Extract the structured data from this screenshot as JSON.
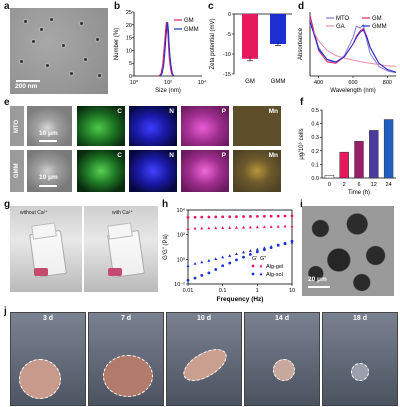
{
  "panel_letters": [
    "a",
    "b",
    "c",
    "d",
    "e",
    "f",
    "g",
    "h",
    "i",
    "j"
  ],
  "a": {
    "scalebar": "200 nm"
  },
  "e": {
    "rows": [
      "MTO",
      "GMM"
    ],
    "scalebars": [
      "10 μm",
      "10 μm"
    ],
    "channels": [
      "C",
      "N",
      "P",
      "Mn"
    ]
  },
  "g": {
    "labels": [
      "without Ca²⁺",
      "with Ca²⁺"
    ]
  },
  "i": {
    "scalebar": "20 μm"
  },
  "j": {
    "days": [
      "3 d",
      "7 d",
      "10 d",
      "14 d",
      "18 d"
    ]
  },
  "colors": {
    "gm": "#e6195c",
    "gmm": "#1c2fd1",
    "mto": "#7b7bd6",
    "ga": "#e68fb5",
    "bars": [
      "#e6195c",
      "#9b1d6a",
      "#4a3b9c",
      "#1e5fc4"
    ]
  },
  "chart_data": [
    {
      "id": "b",
      "type": "line",
      "xlabel": "Size (nm)",
      "ylabel": "Number (%)",
      "xscale": "log",
      "xlim": [
        1,
        10000
      ],
      "ylim": [
        0,
        25
      ],
      "xticks": [
        "10⁰",
        "10²",
        "10⁴"
      ],
      "yticks": [
        "0",
        "5",
        "10",
        "15",
        "20",
        "25"
      ],
      "legend_position": "top-right",
      "series": [
        {
          "name": "GM",
          "x": [
            30,
            40,
            50,
            60,
            70,
            80,
            90,
            100,
            110,
            120,
            140,
            160,
            200
          ],
          "y": [
            0,
            1,
            5,
            11,
            17,
            21,
            20,
            16,
            11,
            7,
            3,
            1,
            0
          ]
        },
        {
          "name": "GMM",
          "x": [
            35,
            45,
            55,
            65,
            75,
            85,
            95,
            105,
            115,
            130,
            150,
            180,
            220
          ],
          "y": [
            0,
            1,
            4,
            9,
            15,
            19,
            21,
            18,
            13,
            8,
            4,
            1,
            0
          ]
        }
      ]
    },
    {
      "id": "c",
      "type": "bar",
      "ylabel": "Zeta potential (mV)",
      "categories": [
        "GM",
        "GMM"
      ],
      "values": [
        -11.2,
        -7.5
      ],
      "errors": [
        0.5,
        0.4
      ],
      "ylim": [
        -15,
        0
      ],
      "yticks": [
        "0",
        "-5",
        "-10",
        "-15"
      ]
    },
    {
      "id": "d",
      "type": "line",
      "xlabel": "Wavelength (nm)",
      "ylabel": "Absorbance",
      "xlim": [
        350,
        850
      ],
      "xticks": [
        "400",
        "600",
        "800"
      ],
      "legend_position": "top",
      "series": [
        {
          "name": "MTO",
          "x": [
            350,
            400,
            450,
            500,
            550,
            600,
            620,
            640,
            660,
            680,
            700,
            750,
            800,
            850
          ],
          "y": [
            0.9,
            0.45,
            0.25,
            0.2,
            0.32,
            0.6,
            0.78,
            0.75,
            0.8,
            0.55,
            0.35,
            0.15,
            0.08,
            0.05
          ]
        },
        {
          "name": "GM",
          "x": [
            350,
            400,
            450,
            500,
            550,
            600,
            620,
            640,
            660,
            680,
            700,
            750,
            800,
            850
          ],
          "y": [
            0.95,
            0.4,
            0.22,
            0.2,
            0.3,
            0.5,
            0.62,
            0.7,
            0.74,
            0.62,
            0.45,
            0.2,
            0.1,
            0.06
          ]
        },
        {
          "name": "GA",
          "x": [
            350,
            400,
            450,
            500,
            550,
            600,
            650,
            700,
            750,
            800,
            850
          ],
          "y": [
            0.8,
            0.55,
            0.4,
            0.32,
            0.28,
            0.25,
            0.22,
            0.2,
            0.18,
            0.16,
            0.15
          ]
        },
        {
          "name": "GMM",
          "x": [
            350,
            400,
            450,
            500,
            550,
            600,
            620,
            640,
            660,
            680,
            700,
            750,
            800,
            850
          ],
          "y": [
            0.85,
            0.42,
            0.26,
            0.22,
            0.3,
            0.5,
            0.6,
            0.68,
            0.72,
            0.6,
            0.44,
            0.2,
            0.1,
            0.06
          ]
        }
      ]
    },
    {
      "id": "f",
      "type": "bar",
      "xlabel": "Time (h)",
      "ylabel": "μg/10⁶ cells",
      "categories": [
        "0",
        "2",
        "6",
        "12",
        "24"
      ],
      "values": [
        0.02,
        0.19,
        0.27,
        0.35,
        0.43
      ],
      "ylim": [
        0,
        0.5
      ],
      "yticks": [
        "0.0",
        "0.1",
        "0.2",
        "0.3",
        "0.4",
        "0.5"
      ]
    },
    {
      "id": "h",
      "type": "scatter",
      "xlabel": "Frequency (Hz)",
      "ylabel": "G'G\" (Pa)",
      "xscale": "log",
      "yscale": "log",
      "xlim": [
        0.01,
        10
      ],
      "ylim": [
        0.01,
        10000
      ],
      "xticks": [
        "0.01",
        "0.1",
        "1",
        "10"
      ],
      "yticks": [
        "10⁻²",
        "10⁰",
        "10²",
        "10⁴"
      ],
      "legend_position": "bottom-right",
      "legend_header": [
        "G'",
        "G\""
      ],
      "series": [
        {
          "name": "Alg-gel G'",
          "x": [
            0.01,
            0.016,
            0.025,
            0.04,
            0.063,
            0.1,
            0.16,
            0.25,
            0.4,
            0.63,
            1,
            1.6,
            2.5,
            4,
            6.3,
            10
          ],
          "y": [
            2500,
            2600,
            2650,
            2700,
            2750,
            2800,
            2850,
            2900,
            2950,
            3000,
            3050,
            3100,
            3150,
            3200,
            3250,
            3300
          ]
        },
        {
          "name": "Alg-gel G\"",
          "x": [
            0.01,
            0.016,
            0.025,
            0.04,
            0.063,
            0.1,
            0.16,
            0.25,
            0.4,
            0.63,
            1,
            1.6,
            2.5,
            4,
            6.3,
            10
          ],
          "y": [
            300,
            320,
            330,
            340,
            350,
            360,
            370,
            380,
            390,
            400,
            410,
            420,
            440,
            460,
            480,
            500
          ]
        },
        {
          "name": "Alg-sol G'",
          "x": [
            0.01,
            0.016,
            0.025,
            0.04,
            0.063,
            0.1,
            0.16,
            0.25,
            0.4,
            0.63,
            1,
            1.6,
            2.5,
            4,
            6.3,
            10
          ],
          "y": [
            0.02,
            0.03,
            0.05,
            0.08,
            0.15,
            0.3,
            0.5,
            0.9,
            1.5,
            2.5,
            4,
            6,
            9,
            14,
            20,
            30
          ]
        },
        {
          "name": "Alg-sol G\"",
          "x": [
            0.01,
            0.016,
            0.025,
            0.04,
            0.063,
            0.1,
            0.16,
            0.25,
            0.4,
            0.63,
            1,
            1.6,
            2.5,
            4,
            6.3,
            10
          ],
          "y": [
            0.3,
            0.45,
            0.6,
            0.8,
            1.1,
            1.5,
            2,
            2.8,
            3.8,
            5,
            6.5,
            8.5,
            11,
            14,
            18,
            24
          ]
        }
      ]
    }
  ]
}
